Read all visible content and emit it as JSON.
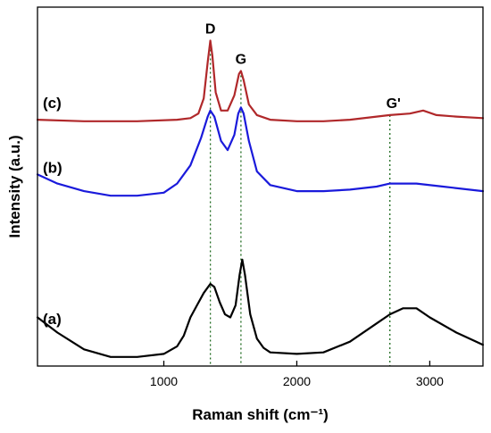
{
  "chart_data": {
    "type": "line",
    "title": "",
    "xlabel": "Raman shift (cm⁻¹)",
    "ylabel": "Intensity (a.u.)",
    "xlim": [
      50,
      3400
    ],
    "x_ticks": [
      1000,
      2000,
      3000
    ],
    "x_tick_labels": [
      "1000",
      "2000",
      "3000"
    ],
    "y_ticks_shown": false,
    "grid": false,
    "legend": "none",
    "peak_lines": [
      {
        "label": "D",
        "x": 1350
      },
      {
        "label": "G",
        "x": 1580
      },
      {
        "label": "G'",
        "x": 2700
      }
    ],
    "peak_line_color": "#1f6b1f",
    "series": [
      {
        "name": "(a)",
        "color": "#000000",
        "points": [
          [
            50,
            0.16
          ],
          [
            200,
            0.11
          ],
          [
            400,
            0.055
          ],
          [
            600,
            0.03
          ],
          [
            800,
            0.03
          ],
          [
            1000,
            0.04
          ],
          [
            1100,
            0.065
          ],
          [
            1150,
            0.1
          ],
          [
            1200,
            0.16
          ],
          [
            1250,
            0.2
          ],
          [
            1300,
            0.24
          ],
          [
            1350,
            0.27
          ],
          [
            1380,
            0.26
          ],
          [
            1420,
            0.21
          ],
          [
            1460,
            0.17
          ],
          [
            1500,
            0.16
          ],
          [
            1540,
            0.2
          ],
          [
            1570,
            0.3
          ],
          [
            1590,
            0.35
          ],
          [
            1610,
            0.3
          ],
          [
            1650,
            0.17
          ],
          [
            1700,
            0.09
          ],
          [
            1750,
            0.06
          ],
          [
            1800,
            0.045
          ],
          [
            2000,
            0.04
          ],
          [
            2200,
            0.045
          ],
          [
            2400,
            0.08
          ],
          [
            2600,
            0.14
          ],
          [
            2700,
            0.17
          ],
          [
            2800,
            0.19
          ],
          [
            2900,
            0.19
          ],
          [
            3000,
            0.16
          ],
          [
            3200,
            0.11
          ],
          [
            3400,
            0.07
          ]
        ]
      },
      {
        "name": "(b)",
        "color": "#1a1adb",
        "points": [
          [
            50,
            0.63
          ],
          [
            200,
            0.6
          ],
          [
            400,
            0.575
          ],
          [
            600,
            0.56
          ],
          [
            800,
            0.56
          ],
          [
            1000,
            0.57
          ],
          [
            1100,
            0.6
          ],
          [
            1200,
            0.66
          ],
          [
            1280,
            0.75
          ],
          [
            1330,
            0.82
          ],
          [
            1350,
            0.84
          ],
          [
            1380,
            0.82
          ],
          [
            1430,
            0.74
          ],
          [
            1480,
            0.71
          ],
          [
            1530,
            0.76
          ],
          [
            1560,
            0.83
          ],
          [
            1580,
            0.85
          ],
          [
            1600,
            0.83
          ],
          [
            1640,
            0.74
          ],
          [
            1700,
            0.64
          ],
          [
            1800,
            0.595
          ],
          [
            2000,
            0.575
          ],
          [
            2200,
            0.575
          ],
          [
            2400,
            0.58
          ],
          [
            2600,
            0.59
          ],
          [
            2700,
            0.6
          ],
          [
            2900,
            0.6
          ],
          [
            3100,
            0.59
          ],
          [
            3400,
            0.575
          ]
        ]
      },
      {
        "name": "(c)",
        "color": "#b0282a",
        "points": [
          [
            50,
            0.81
          ],
          [
            400,
            0.805
          ],
          [
            800,
            0.805
          ],
          [
            1100,
            0.81
          ],
          [
            1200,
            0.815
          ],
          [
            1260,
            0.83
          ],
          [
            1300,
            0.88
          ],
          [
            1330,
            1.0
          ],
          [
            1350,
            1.07
          ],
          [
            1365,
            1.02
          ],
          [
            1390,
            0.9
          ],
          [
            1430,
            0.84
          ],
          [
            1480,
            0.84
          ],
          [
            1530,
            0.89
          ],
          [
            1565,
            0.96
          ],
          [
            1580,
            0.97
          ],
          [
            1600,
            0.94
          ],
          [
            1640,
            0.86
          ],
          [
            1700,
            0.825
          ],
          [
            1800,
            0.81
          ],
          [
            2000,
            0.805
          ],
          [
            2200,
            0.805
          ],
          [
            2400,
            0.81
          ],
          [
            2600,
            0.82
          ],
          [
            2700,
            0.825
          ],
          [
            2850,
            0.83
          ],
          [
            2950,
            0.84
          ],
          [
            3050,
            0.825
          ],
          [
            3200,
            0.82
          ],
          [
            3400,
            0.815
          ]
        ]
      }
    ]
  }
}
